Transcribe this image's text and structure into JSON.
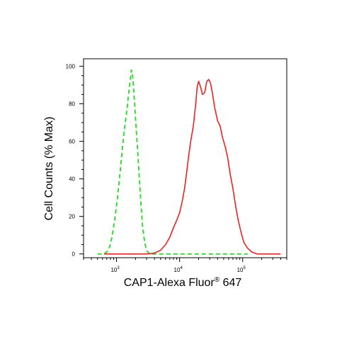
{
  "chart_data": {
    "type": "line",
    "title": "",
    "xlabel": {
      "main": "CAP1-Alexa Fluor",
      "sup": "®",
      "tail": " 647"
    },
    "ylabel": "Cell Counts (% Max)",
    "xscale": "log",
    "xlim": [
      300,
      500000
    ],
    "ylim": [
      -2,
      104
    ],
    "grid": false,
    "y_ticks": [
      0,
      20,
      40,
      60,
      80,
      100
    ],
    "y_tick_labels": [
      "0",
      "20",
      "40",
      "60",
      "80",
      "100"
    ],
    "x_ticks": [
      1000,
      10000,
      100000
    ],
    "x_tick_labels": [
      {
        "base": "10",
        "exp": "3"
      },
      {
        "base": "10",
        "exp": "4"
      },
      {
        "base": "10",
        "exp": "5"
      }
    ],
    "series": [
      {
        "style": "dashed",
        "color": "#33dd33",
        "points": [
          [
            500,
            0
          ],
          [
            620,
            0
          ],
          [
            700,
            1
          ],
          [
            780,
            4
          ],
          [
            860,
            10
          ],
          [
            950,
            20
          ],
          [
            1050,
            32
          ],
          [
            1150,
            45
          ],
          [
            1250,
            58
          ],
          [
            1350,
            68
          ],
          [
            1450,
            76
          ],
          [
            1550,
            85
          ],
          [
            1650,
            93
          ],
          [
            1720,
            98
          ],
          [
            1800,
            95
          ],
          [
            1900,
            84
          ],
          [
            2000,
            72
          ],
          [
            2150,
            56
          ],
          [
            2300,
            40
          ],
          [
            2450,
            26
          ],
          [
            2600,
            14
          ],
          [
            2800,
            6
          ],
          [
            3000,
            2
          ],
          [
            3300,
            0
          ],
          [
            40000,
            0
          ],
          [
            60000,
            0
          ],
          [
            120000,
            0
          ]
        ]
      },
      {
        "style": "solid",
        "color": "#ee2222",
        "points": [
          [
            630,
            0
          ],
          [
            900,
            0
          ],
          [
            1500,
            0
          ],
          [
            3000,
            0
          ],
          [
            4000,
            0.5
          ],
          [
            5000,
            2
          ],
          [
            6000,
            5
          ],
          [
            7000,
            9
          ],
          [
            8000,
            14
          ],
          [
            9000,
            18
          ],
          [
            10000,
            22
          ],
          [
            11000,
            28
          ],
          [
            12000,
            35
          ],
          [
            13000,
            44
          ],
          [
            14000,
            53
          ],
          [
            15000,
            60
          ],
          [
            16500,
            68
          ],
          [
            18000,
            80
          ],
          [
            19000,
            89
          ],
          [
            20000,
            92
          ],
          [
            21500,
            89
          ],
          [
            23000,
            85
          ],
          [
            25000,
            86
          ],
          [
            27000,
            92
          ],
          [
            29000,
            93
          ],
          [
            31000,
            91
          ],
          [
            33000,
            86
          ],
          [
            36000,
            78
          ],
          [
            40000,
            71
          ],
          [
            44000,
            68
          ],
          [
            48000,
            62
          ],
          [
            53000,
            57
          ],
          [
            58000,
            51
          ],
          [
            63000,
            43
          ],
          [
            70000,
            35
          ],
          [
            77000,
            26
          ],
          [
            85000,
            18
          ],
          [
            95000,
            11
          ],
          [
            105000,
            6
          ],
          [
            120000,
            3
          ],
          [
            140000,
            1
          ],
          [
            170000,
            0
          ],
          [
            200000,
            0
          ],
          [
            400000,
            0
          ]
        ]
      }
    ]
  }
}
